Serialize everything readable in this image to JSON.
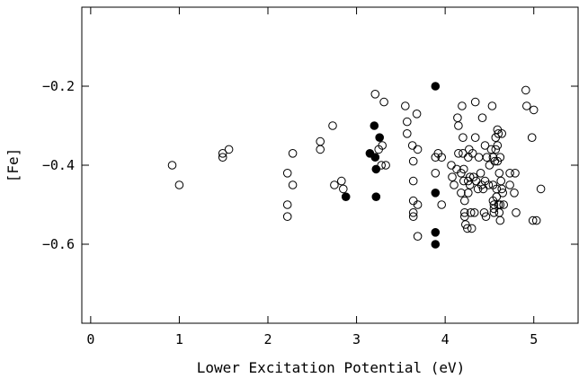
{
  "chart_data": {
    "type": "scatter",
    "title": "",
    "xlabel": "Lower Excitation Potential (eV)",
    "ylabel": "[Fe]",
    "xlim": [
      -0.1,
      5.5
    ],
    "ylim": [
      -0.8,
      0.0
    ],
    "xticks": [
      0,
      1,
      2,
      3,
      4,
      5
    ],
    "xtick_labels": [
      "0",
      "1",
      "2",
      "3",
      "4",
      "5"
    ],
    "yticks": [
      -0.2,
      -0.4,
      -0.6
    ],
    "ytick_labels": [
      "−0.2",
      "−0.4",
      "−0.6"
    ],
    "grid": false,
    "colors": {
      "axis": "#000000",
      "marker": "#000000",
      "background": "#ffffff"
    },
    "series": [
      {
        "marker": "open-circle",
        "points": [
          [
            0.92,
            -0.4
          ],
          [
            1.0,
            -0.45
          ],
          [
            1.49,
            -0.37
          ],
          [
            1.49,
            -0.38
          ],
          [
            1.56,
            -0.36
          ],
          [
            2.22,
            -0.42
          ],
          [
            2.22,
            -0.5
          ],
          [
            2.22,
            -0.53
          ],
          [
            2.28,
            -0.37
          ],
          [
            2.28,
            -0.45
          ],
          [
            2.59,
            -0.34
          ],
          [
            2.59,
            -0.36
          ],
          [
            2.73,
            -0.3
          ],
          [
            2.75,
            -0.45
          ],
          [
            2.83,
            -0.44
          ],
          [
            2.85,
            -0.46
          ],
          [
            3.21,
            -0.22
          ],
          [
            3.25,
            -0.36
          ],
          [
            3.28,
            -0.4
          ],
          [
            3.29,
            -0.35
          ],
          [
            3.31,
            -0.24
          ],
          [
            3.33,
            -0.4
          ],
          [
            3.55,
            -0.25
          ],
          [
            3.57,
            -0.29
          ],
          [
            3.57,
            -0.32
          ],
          [
            3.63,
            -0.35
          ],
          [
            3.64,
            -0.39
          ],
          [
            3.64,
            -0.44
          ],
          [
            3.64,
            -0.49
          ],
          [
            3.64,
            -0.52
          ],
          [
            3.64,
            -0.53
          ],
          [
            3.68,
            -0.27
          ],
          [
            3.69,
            -0.36
          ],
          [
            3.69,
            -0.5
          ],
          [
            3.69,
            -0.58
          ],
          [
            3.89,
            -0.38
          ],
          [
            3.89,
            -0.42
          ],
          [
            3.92,
            -0.37
          ],
          [
            3.96,
            -0.38
          ],
          [
            3.96,
            -0.5
          ],
          [
            4.07,
            -0.4
          ],
          [
            4.08,
            -0.43
          ],
          [
            4.1,
            -0.45
          ],
          [
            4.13,
            -0.41
          ],
          [
            4.14,
            -0.28
          ],
          [
            4.15,
            -0.3
          ],
          [
            4.15,
            -0.37
          ],
          [
            4.18,
            -0.42
          ],
          [
            4.18,
            -0.47
          ],
          [
            4.19,
            -0.25
          ],
          [
            4.2,
            -0.33
          ],
          [
            4.2,
            -0.37
          ],
          [
            4.21,
            -0.41
          ],
          [
            4.21,
            -0.44
          ],
          [
            4.22,
            -0.49
          ],
          [
            4.22,
            -0.52
          ],
          [
            4.22,
            -0.53
          ],
          [
            4.23,
            -0.55
          ],
          [
            4.25,
            -0.56
          ],
          [
            4.26,
            -0.38
          ],
          [
            4.26,
            -0.44
          ],
          [
            4.26,
            -0.47
          ],
          [
            4.27,
            -0.36
          ],
          [
            4.28,
            -0.43
          ],
          [
            4.28,
            -0.45
          ],
          [
            4.29,
            -0.52
          ],
          [
            4.3,
            -0.56
          ],
          [
            4.31,
            -0.37
          ],
          [
            4.32,
            -0.43
          ],
          [
            4.33,
            -0.52
          ],
          [
            4.34,
            -0.24
          ],
          [
            4.34,
            -0.33
          ],
          [
            4.35,
            -0.44
          ],
          [
            4.37,
            -0.46
          ],
          [
            4.38,
            -0.38
          ],
          [
            4.4,
            -0.42
          ],
          [
            4.41,
            -0.45
          ],
          [
            4.42,
            -0.28
          ],
          [
            4.43,
            -0.46
          ],
          [
            4.44,
            -0.52
          ],
          [
            4.45,
            -0.35
          ],
          [
            4.45,
            -0.44
          ],
          [
            4.46,
            -0.53
          ],
          [
            4.47,
            -0.38
          ],
          [
            4.49,
            -0.45
          ],
          [
            4.5,
            -0.4
          ],
          [
            4.52,
            -0.36
          ],
          [
            4.53,
            -0.25
          ],
          [
            4.54,
            -0.38
          ],
          [
            4.54,
            -0.45
          ],
          [
            4.54,
            -0.49
          ],
          [
            4.55,
            -0.5
          ],
          [
            4.55,
            -0.51
          ],
          [
            4.55,
            -0.52
          ],
          [
            4.56,
            -0.39
          ],
          [
            4.57,
            -0.33
          ],
          [
            4.57,
            -0.36
          ],
          [
            4.58,
            -0.46
          ],
          [
            4.58,
            -0.48
          ],
          [
            4.59,
            -0.31
          ],
          [
            4.59,
            -0.35
          ],
          [
            4.59,
            -0.39
          ],
          [
            4.6,
            -0.32
          ],
          [
            4.6,
            -0.5
          ],
          [
            4.61,
            -0.42
          ],
          [
            4.61,
            -0.52
          ],
          [
            4.62,
            -0.38
          ],
          [
            4.62,
            -0.5
          ],
          [
            4.62,
            -0.54
          ],
          [
            4.63,
            -0.44
          ],
          [
            4.64,
            -0.32
          ],
          [
            4.64,
            -0.46
          ],
          [
            4.65,
            -0.47
          ],
          [
            4.66,
            -0.5
          ],
          [
            4.73,
            -0.42
          ],
          [
            4.73,
            -0.45
          ],
          [
            4.78,
            -0.47
          ],
          [
            4.79,
            -0.42
          ],
          [
            4.8,
            -0.52
          ],
          [
            4.91,
            -0.21
          ],
          [
            4.92,
            -0.25
          ],
          [
            4.98,
            -0.33
          ],
          [
            4.99,
            -0.54
          ],
          [
            5.0,
            -0.26
          ],
          [
            5.03,
            -0.54
          ],
          [
            5.08,
            -0.46
          ]
        ]
      },
      {
        "marker": "filled-circle",
        "points": [
          [
            2.88,
            -0.48
          ],
          [
            3.15,
            -0.37
          ],
          [
            3.2,
            -0.3
          ],
          [
            3.21,
            -0.38
          ],
          [
            3.22,
            -0.41
          ],
          [
            3.22,
            -0.48
          ],
          [
            3.26,
            -0.33
          ],
          [
            3.89,
            -0.2
          ],
          [
            3.89,
            -0.47
          ],
          [
            3.89,
            -0.57
          ],
          [
            3.89,
            -0.6
          ]
        ]
      }
    ]
  }
}
